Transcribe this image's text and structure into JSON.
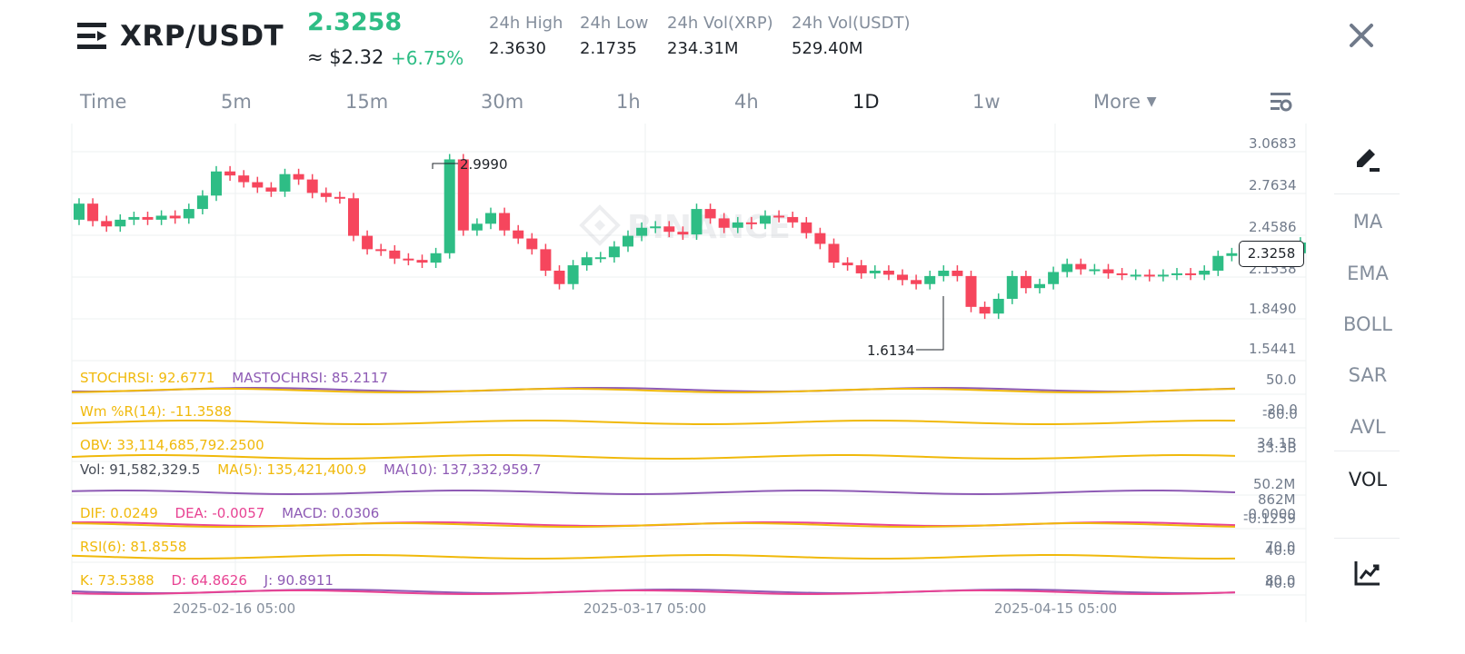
{
  "header": {
    "pair": "XRP/USDT",
    "last_price": "2.3258",
    "usd_price": "≈ $2.32",
    "change": "+6.75%",
    "stats": [
      {
        "label": "24h High",
        "value": "2.3630"
      },
      {
        "label": "24h Low",
        "value": "2.1735"
      },
      {
        "label": "24h Vol(XRP)",
        "value": "234.31M"
      },
      {
        "label": "24h Vol(USDT)",
        "value": "529.40M"
      }
    ]
  },
  "tabs": [
    "Time",
    "5m",
    "15m",
    "30m",
    "1h",
    "4h",
    "1D",
    "1w",
    "More"
  ],
  "active_tab": "1D",
  "sidebar": {
    "items": [
      "MA",
      "EMA",
      "BOLL",
      "SAR",
      "AVL",
      "VOL"
    ],
    "active": "VOL"
  },
  "chart": {
    "watermark": "BINANCE",
    "price_axis": [
      "3.0683",
      "2.7634",
      "2.4586",
      "2.1538",
      "1.8490",
      "1.5441"
    ],
    "current_price_tag": "2.3258",
    "high_marker": "2.9990",
    "low_marker": "1.6134",
    "dates": [
      "2025-02-16 05:00",
      "2025-03-17 05:00",
      "2025-04-15 05:00"
    ]
  },
  "indicators": {
    "stochrsi": {
      "label": "STOCHRSI: 92.6771",
      "ma_label": "MASTOCHRSI: 85.2117",
      "axis": "50.0"
    },
    "wmr": {
      "label": "Wm %R(14): -11.3588",
      "axis_a": "-20.0",
      "axis_b": "-80.0"
    },
    "obv": {
      "label": "OBV: 33,114,685,792.2500",
      "axis_a": "34.1B",
      "axis_b": "33.3B"
    },
    "vol": {
      "label": "Vol: 91,582,329.5",
      "ma5": "MA(5): 135,421,400.9",
      "ma10": "MA(10): 137,332,959.7",
      "axis": "50.2M"
    },
    "macd": {
      "dif": "DIF: 0.0249",
      "dea": "DEA: -0.0057",
      "macd": "MACD: 0.0306",
      "axis_a": "862M",
      "axis_b": "-0.0000",
      "axis_c": "-0.1259"
    },
    "rsi": {
      "label": "RSI(6): 81.8558",
      "axis_a": "70.0",
      "axis_b": "40.0"
    },
    "kdj": {
      "k": "K: 73.5388",
      "d": "D: 64.8626",
      "j": "J: 90.8911",
      "axis_a": "80.0",
      "axis_b": "40.0"
    }
  },
  "colors": {
    "up": "#2ebd85",
    "down": "#f6465d",
    "yellow": "#f0b90b",
    "purple": "#8e5bb5",
    "pink": "#e84393",
    "gray": "#848e9c"
  },
  "icons": [
    "menu-icon",
    "close-icon",
    "settings-icon",
    "draw-pen-icon",
    "chart-line-icon",
    "caret-down-icon"
  ]
}
